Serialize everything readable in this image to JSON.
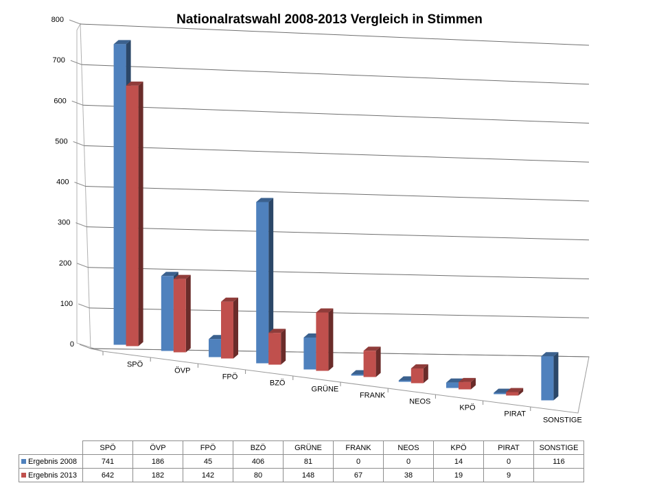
{
  "chart_data": {
    "type": "bar",
    "title": "Nationalratswahl 2008-2013 Vergleich in Stimmen",
    "categories": [
      "SPÖ",
      "ÖVP",
      "FPÖ",
      "BZÖ",
      "GRÜNE",
      "FRANK",
      "NEOS",
      "KPÖ",
      "PIRAT",
      "SONSTIGE"
    ],
    "series": [
      {
        "name": "Ergebnis 2008",
        "color": "#4f81bd",
        "values": [
          741,
          186,
          45,
          406,
          81,
          0,
          0,
          14,
          0,
          116
        ],
        "labels": [
          "741",
          "186",
          "45",
          "406",
          "81",
          "0",
          "0",
          "14",
          "0",
          "116"
        ]
      },
      {
        "name": "Ergebnis 2013",
        "color": "#c0504d",
        "values": [
          642,
          182,
          142,
          80,
          148,
          67,
          38,
          19,
          9,
          null
        ],
        "labels": [
          "642",
          "182",
          "142",
          "80",
          "148",
          "67",
          "38",
          "19",
          "9",
          ""
        ]
      }
    ],
    "ylim": [
      0,
      800
    ],
    "yticks": [
      "0",
      "100",
      "200",
      "300",
      "400",
      "500",
      "600",
      "700",
      "800"
    ],
    "grid": true,
    "legend": "data-table"
  }
}
